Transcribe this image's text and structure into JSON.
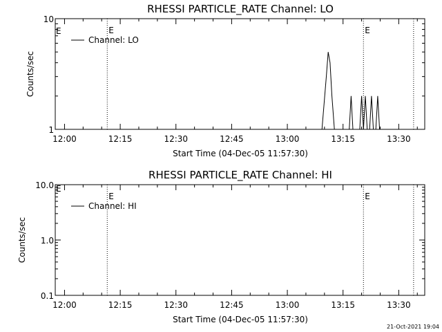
{
  "chart_data": [
    {
      "type": "line",
      "title": "RHESSI PARTICLE_RATE Channel: LO",
      "xlabel": "Start Time (04-Dec-05 11:57:30)",
      "ylabel": "Counts/sec",
      "yscale": "log",
      "ylim": [
        1,
        10
      ],
      "ytick_labels": [
        {
          "v": 1,
          "t": "1"
        },
        {
          "v": 10,
          "t": "10"
        }
      ],
      "xlim": [
        "11:57:30",
        "13:37:00"
      ],
      "xtick_labels": [
        "12:00",
        "12:15",
        "12:30",
        "12:45",
        "13:00",
        "13:15",
        "13:30"
      ],
      "legend": {
        "position": "top-left",
        "entries": [
          "Channel: LO"
        ]
      },
      "markers": [
        {
          "time": "12:11:30",
          "label": "E"
        },
        {
          "time": "13:20:30",
          "label": "E"
        },
        {
          "time": "13:34:00",
          "label": ""
        }
      ],
      "start_label": "E",
      "series": [
        {
          "name": "Channel: LO",
          "x": [
            "13:09:20",
            "13:10:30",
            "13:11:00",
            "13:11:30",
            "13:12:00",
            "13:12:40",
            "13:16:40",
            "13:17:10",
            "13:17:40",
            "13:19:30",
            "13:20:00",
            "13:20:30",
            "13:21:00",
            "13:21:30",
            "13:22:10",
            "13:22:40",
            "13:23:10",
            "13:23:50",
            "13:24:20",
            "13:24:50"
          ],
          "y": [
            1,
            3,
            5,
            4,
            2,
            1,
            1,
            2,
            1,
            1,
            2,
            1,
            2,
            1,
            1,
            2,
            1,
            1,
            2,
            1
          ]
        }
      ]
    },
    {
      "type": "line",
      "title": "RHESSI PARTICLE_RATE Channel: HI",
      "xlabel": "Start Time (04-Dec-05 11:57:30)",
      "ylabel": "Counts/sec",
      "yscale": "log",
      "ylim": [
        0.1,
        10
      ],
      "ytick_labels": [
        {
          "v": 0.1,
          "t": "0.1"
        },
        {
          "v": 1,
          "t": "1.0"
        },
        {
          "v": 10,
          "t": "10.0"
        }
      ],
      "xlim": [
        "11:57:30",
        "13:37:00"
      ],
      "xtick_labels": [
        "12:00",
        "12:15",
        "12:30",
        "12:45",
        "13:00",
        "13:15",
        "13:30"
      ],
      "legend": {
        "position": "top-left",
        "entries": [
          "Channel: HI"
        ]
      },
      "markers": [
        {
          "time": "12:11:30",
          "label": "E"
        },
        {
          "time": "13:20:30",
          "label": "E"
        },
        {
          "time": "13:34:00",
          "label": ""
        }
      ],
      "start_label": "E",
      "series": [
        {
          "name": "Channel: HI",
          "x": [],
          "y": []
        }
      ]
    }
  ],
  "footer_timestamp": "21-Oct-2021 19:04"
}
